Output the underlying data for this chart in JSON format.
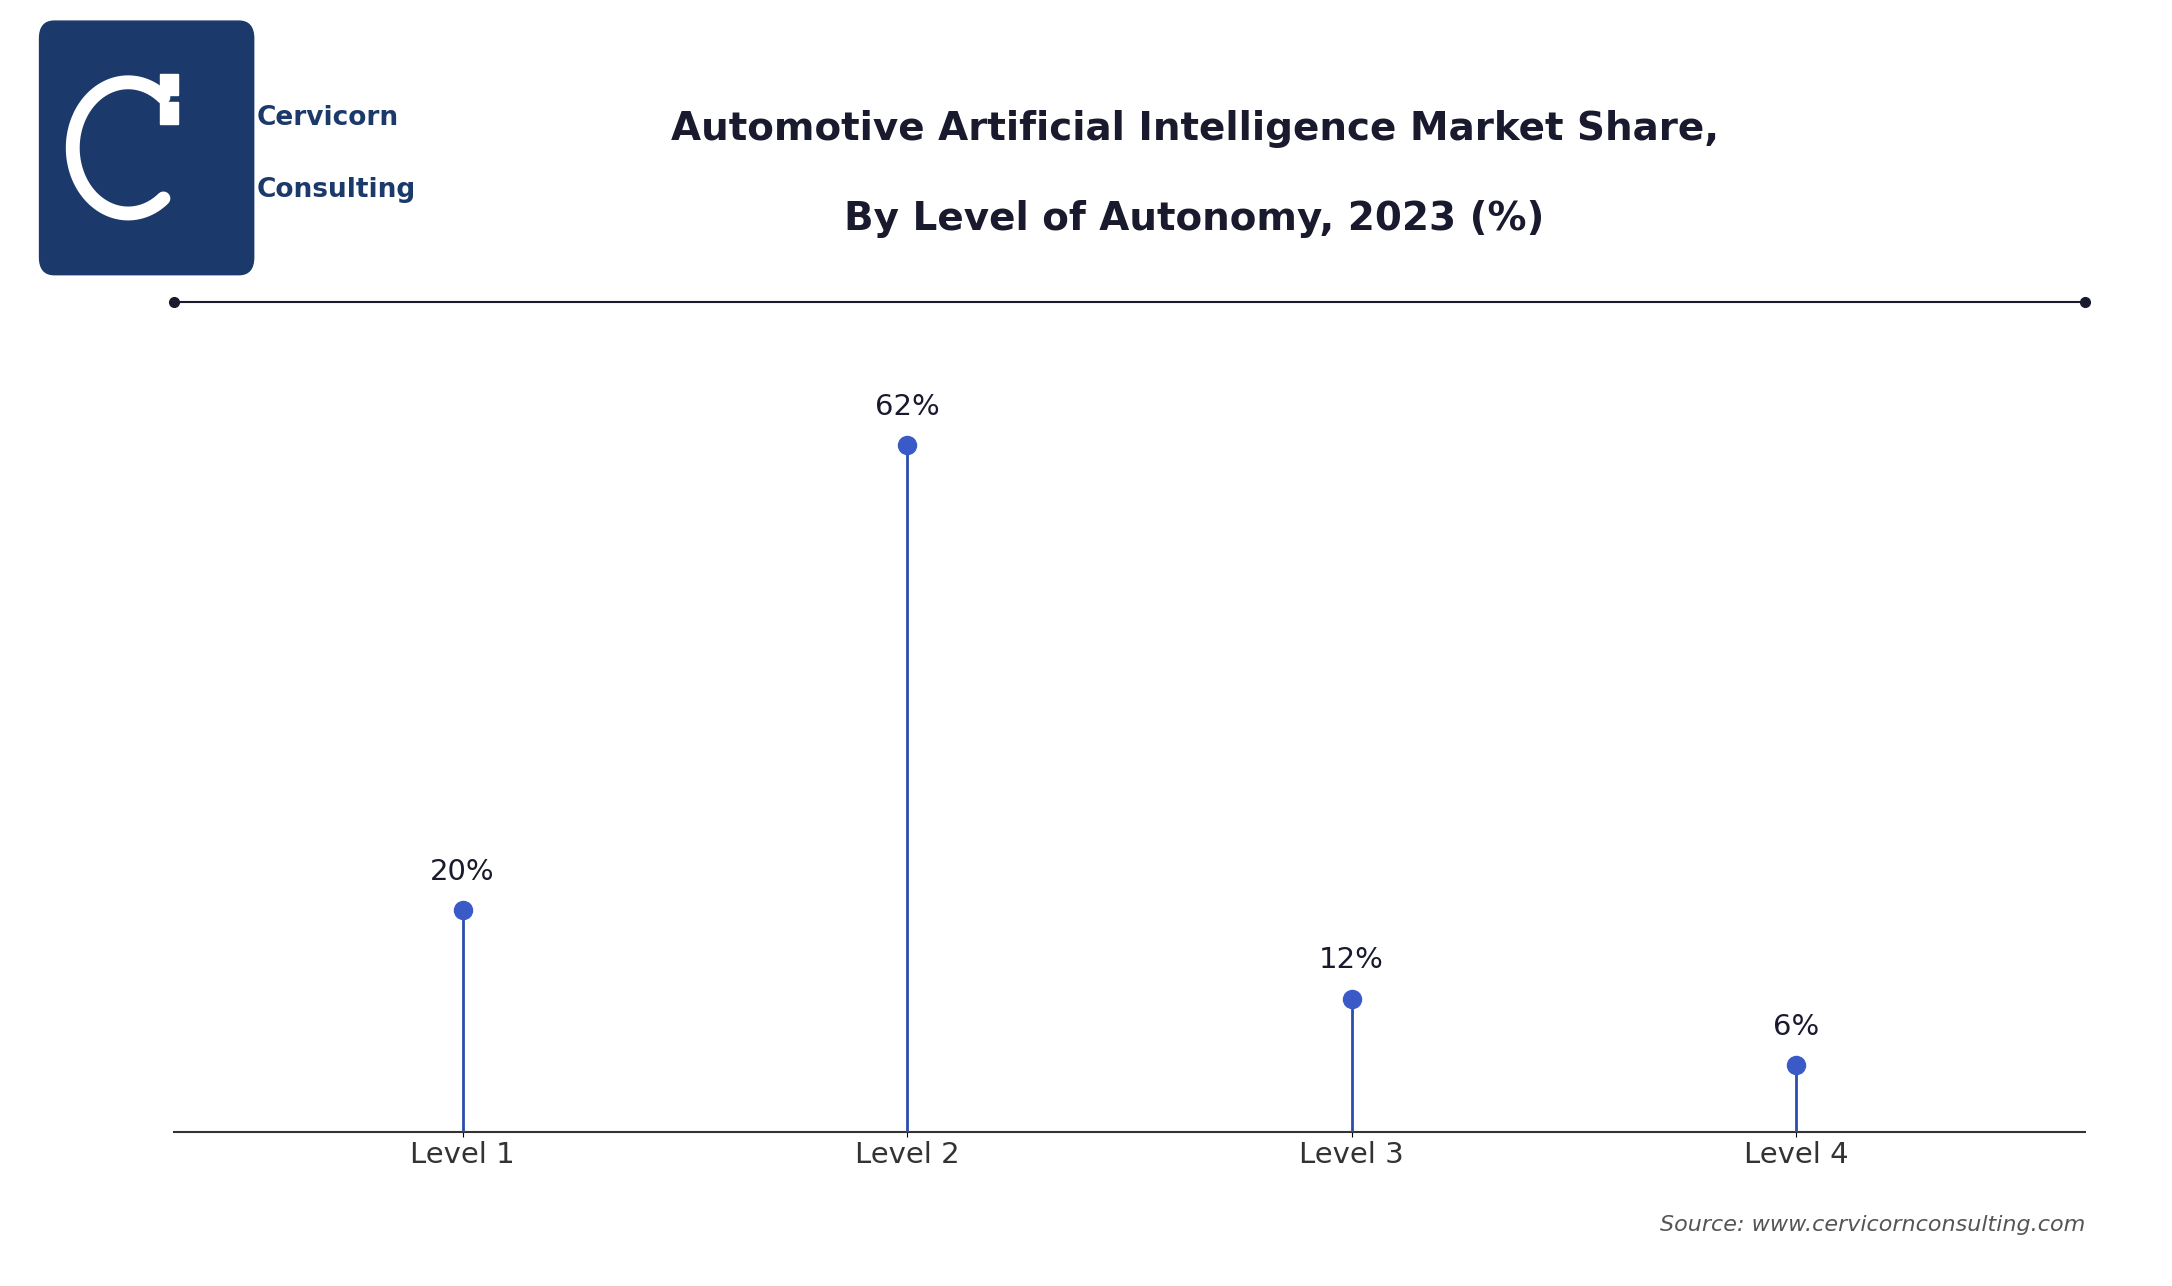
{
  "title_line1": "Automotive Artificial Intelligence Market Share,",
  "title_line2": "By Level of Autonomy, 2023 (%)",
  "categories": [
    "Level 1",
    "Level 2",
    "Level 3",
    "Level 4"
  ],
  "values": [
    20,
    62,
    12,
    6
  ],
  "labels": [
    "20%",
    "62%",
    "12%",
    "6%"
  ],
  "stem_color": "#2B4EAE",
  "marker_color": "#3A5BC7",
  "title_color": "#1a1a2e",
  "label_color": "#1a1a2e",
  "tick_color": "#333333",
  "grid_color": "#d0d0d0",
  "background_color": "#ffffff",
  "source_text": "Source: www.cervicornconsulting.com",
  "title_fontsize": 28,
  "label_fontsize": 21,
  "tick_fontsize": 21,
  "source_fontsize": 16,
  "logo_color": "#1B3A6B",
  "ylim_max": 72,
  "marker_size": 13,
  "stem_linewidth": 2.0,
  "decorative_line_color": "#1a1a2e",
  "decorative_dot_size": 7
}
